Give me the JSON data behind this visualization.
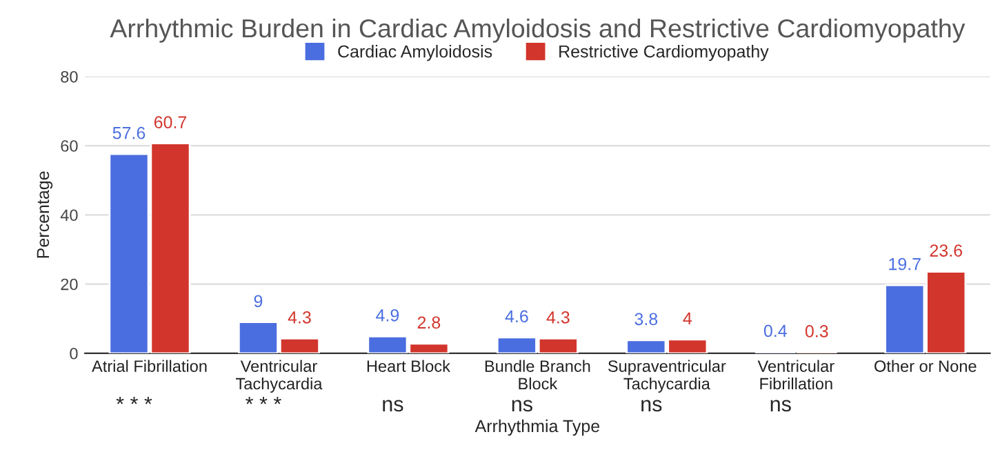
{
  "chart_data": {
    "type": "bar",
    "title": "Arrhythmic Burden in Cardiac Amyloidosis and Restrictive Cardiomyopathy",
    "xlabel": "Arrhythmia Type",
    "ylabel": "Percentage",
    "categories": [
      "Atrial Fibrillation",
      "Ventricular\nTachycardia",
      "Heart Block",
      "Bundle Branch\nBlock",
      "Supraventricular\nTachycardia",
      "Ventricular\nFibrillation",
      "Other or None"
    ],
    "series": [
      {
        "name": "Cardiac Amyloidosis",
        "color": "#4a6ee0",
        "values": [
          57.6,
          9,
          4.9,
          4.6,
          3.8,
          0.4,
          19.7
        ]
      },
      {
        "name": "Restrictive Cardiomyopathy",
        "color": "#d2352c",
        "values": [
          60.7,
          4.3,
          2.8,
          4.3,
          4,
          0.3,
          23.6
        ]
      }
    ],
    "ylim": [
      0,
      80
    ],
    "yticks": [
      0,
      20,
      40,
      60,
      80
    ],
    "grid": "y",
    "legend": "top",
    "data_labels": true,
    "annotations": [
      "* * *",
      "* * *",
      "ns",
      "ns",
      "ns",
      "ns"
    ]
  }
}
